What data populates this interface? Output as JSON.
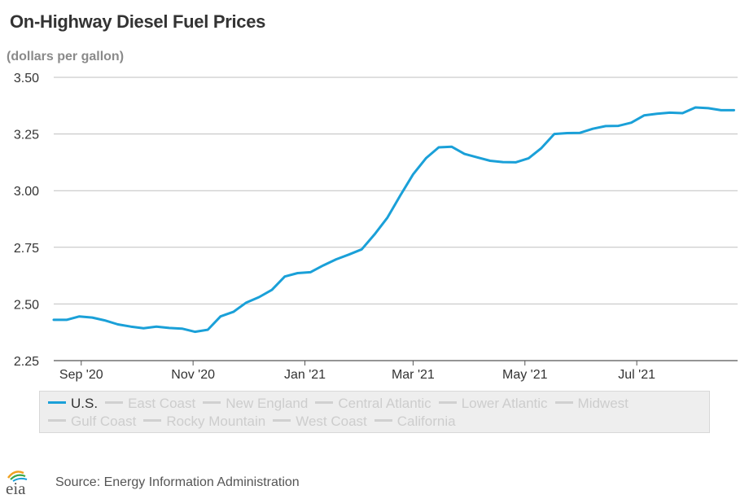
{
  "title": "On-Highway Diesel Fuel Prices",
  "subtitle": "(dollars per gallon)",
  "source": "Source: Energy Information Administration",
  "logo_text": "eia",
  "colors": {
    "us_line": "#1aa0d8",
    "grid": "#bfbfbf",
    "axis": "#555555",
    "inactive": "#d0d0d0"
  },
  "legend": {
    "rows": [
      [
        {
          "label": "U.S.",
          "active": true
        },
        {
          "label": "East Coast",
          "active": false
        },
        {
          "label": "New England",
          "active": false
        },
        {
          "label": "Central Atlantic",
          "active": false
        },
        {
          "label": "Lower Atlantic",
          "active": false
        },
        {
          "label": "Midwest",
          "active": false
        }
      ],
      [
        {
          "label": "Gulf Coast",
          "active": false
        },
        {
          "label": "Rocky Mountain",
          "active": false
        },
        {
          "label": "West Coast",
          "active": false
        },
        {
          "label": "California",
          "active": false
        }
      ]
    ]
  },
  "chart_data": {
    "type": "line",
    "title": "On-Highway Diesel Fuel Prices",
    "ylabel": "(dollars per gallon)",
    "ylim": [
      2.25,
      3.5
    ],
    "yticks": [
      "3.50",
      "3.25",
      "3.00",
      "2.75",
      "2.50",
      "2.25"
    ],
    "xlim": [
      "2020-08-17",
      "2021-08-25"
    ],
    "xticks": [
      {
        "label": "Sep '20",
        "date": "2020-09-01"
      },
      {
        "label": "Nov '20",
        "date": "2020-11-01"
      },
      {
        "label": "Jan '21",
        "date": "2021-01-01"
      },
      {
        "label": "Mar '21",
        "date": "2021-03-01"
      },
      {
        "label": "May '21",
        "date": "2021-05-01"
      },
      {
        "label": "Jul '21",
        "date": "2021-07-01"
      }
    ],
    "grid": true,
    "legend_position": "bottom",
    "series": [
      {
        "name": "U.S.",
        "x": [
          "2020-08-17",
          "2020-08-24",
          "2020-08-31",
          "2020-09-07",
          "2020-09-14",
          "2020-09-21",
          "2020-09-28",
          "2020-10-05",
          "2020-10-12",
          "2020-10-19",
          "2020-10-26",
          "2020-11-02",
          "2020-11-09",
          "2020-11-16",
          "2020-11-23",
          "2020-11-30",
          "2020-12-07",
          "2020-12-14",
          "2020-12-21",
          "2020-12-28",
          "2021-01-04",
          "2021-01-11",
          "2021-01-18",
          "2021-01-25",
          "2021-02-01",
          "2021-02-08",
          "2021-02-15",
          "2021-02-22",
          "2021-03-01",
          "2021-03-08",
          "2021-03-15",
          "2021-03-22",
          "2021-03-29",
          "2021-04-05",
          "2021-04-12",
          "2021-04-19",
          "2021-04-26",
          "2021-05-03",
          "2021-05-10",
          "2021-05-17",
          "2021-05-24",
          "2021-05-31",
          "2021-06-07",
          "2021-06-14",
          "2021-06-21",
          "2021-06-28",
          "2021-07-05",
          "2021-07-12",
          "2021-07-19",
          "2021-07-26",
          "2021-08-02",
          "2021-08-09",
          "2021-08-16",
          "2021-08-23"
        ],
        "values": [
          2.43,
          2.43,
          2.445,
          2.44,
          2.427,
          2.41,
          2.4,
          2.393,
          2.4,
          2.394,
          2.391,
          2.377,
          2.386,
          2.445,
          2.465,
          2.506,
          2.53,
          2.562,
          2.621,
          2.636,
          2.64,
          2.67,
          2.697,
          2.718,
          2.741,
          2.807,
          2.881,
          2.978,
          3.072,
          3.143,
          3.191,
          3.194,
          3.162,
          3.147,
          3.132,
          3.126,
          3.125,
          3.143,
          3.188,
          3.25,
          3.254,
          3.255,
          3.273,
          3.285,
          3.286,
          3.3,
          3.332,
          3.339,
          3.344,
          3.342,
          3.367,
          3.364,
          3.355,
          3.355
        ]
      }
    ]
  }
}
